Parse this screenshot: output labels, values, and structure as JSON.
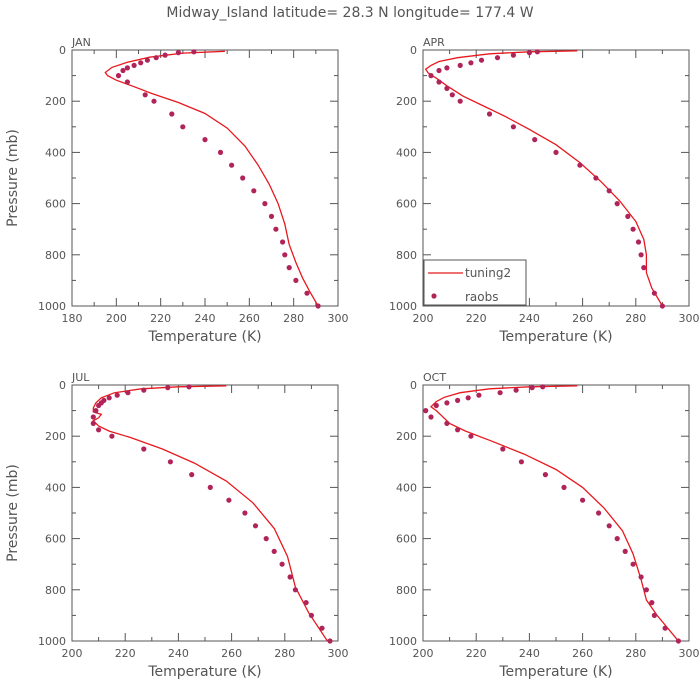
{
  "title": "Midway_Island  latitude= 28.3 N longitude= 177.4 W",
  "colors": {
    "line": "#e8191e",
    "marker": "#b0245a",
    "axis": "#555555"
  },
  "legend": {
    "placement": "inside-lower-left of APR panel",
    "line_label": "tuning2",
    "marker_label": "raobs"
  },
  "chart_data": [
    {
      "type": "line+scatter",
      "panel": "JAN",
      "xlabel": "Temperature (K)",
      "ylabel": "Pressure (mb)",
      "xlim": [
        180,
        300
      ],
      "ylim": [
        1000,
        0
      ],
      "xticks": [
        180,
        200,
        220,
        240,
        260,
        280,
        300
      ],
      "yticks": [
        0,
        200,
        400,
        600,
        800,
        1000
      ],
      "series": [
        {
          "name": "tuning2",
          "kind": "line",
          "points": [
            [
              249,
              5
            ],
            [
              230,
              12
            ],
            [
              215,
              28
            ],
            [
              205,
              48
            ],
            [
              198,
              68
            ],
            [
              195,
              88
            ],
            [
              196,
              100
            ],
            [
              200,
              118
            ],
            [
              207,
              140
            ],
            [
              216,
              170
            ],
            [
              228,
              205
            ],
            [
              240,
              248
            ],
            [
              250,
              305
            ],
            [
              258,
              375
            ],
            [
              264,
              450
            ],
            [
              269,
              525
            ],
            [
              273,
              600
            ],
            [
              276,
              680
            ],
            [
              278,
              760
            ],
            [
              281,
              830
            ],
            [
              284,
              890
            ],
            [
              287,
              940
            ],
            [
              291,
              1000
            ]
          ]
        },
        {
          "name": "raobs",
          "kind": "scatter",
          "points": [
            [
              235,
              7
            ],
            [
              228,
              10
            ],
            [
              222,
              20
            ],
            [
              218,
              30
            ],
            [
              214,
              40
            ],
            [
              211,
              50
            ],
            [
              208,
              60
            ],
            [
              205,
              70
            ],
            [
              203,
              80
            ],
            [
              201,
              100
            ],
            [
              205,
              125
            ],
            [
              213,
              175
            ],
            [
              217,
              200
            ],
            [
              225,
              250
            ],
            [
              230,
              300
            ],
            [
              240,
              350
            ],
            [
              247,
              400
            ],
            [
              252,
              450
            ],
            [
              257,
              500
            ],
            [
              262,
              550
            ],
            [
              267,
              600
            ],
            [
              270,
              650
            ],
            [
              272,
              700
            ],
            [
              275,
              750
            ],
            [
              276,
              800
            ],
            [
              278,
              850
            ],
            [
              281,
              900
            ],
            [
              286,
              950
            ],
            [
              291,
              1000
            ]
          ]
        }
      ]
    },
    {
      "type": "line+scatter",
      "panel": "APR",
      "xlabel": "Temperature (K)",
      "ylabel": "",
      "xlim": [
        200,
        300
      ],
      "ylim": [
        1000,
        0
      ],
      "xticks": [
        200,
        220,
        240,
        260,
        280,
        300
      ],
      "yticks": [
        0,
        200,
        400,
        600,
        800,
        1000
      ],
      "series": [
        {
          "name": "tuning2",
          "kind": "line",
          "points": [
            [
              258,
              3
            ],
            [
              240,
              7
            ],
            [
              225,
              15
            ],
            [
              213,
              30
            ],
            [
              206,
              45
            ],
            [
              203,
              60
            ],
            [
              201,
              75
            ],
            [
              202,
              90
            ],
            [
              205,
              110
            ],
            [
              209,
              140
            ],
            [
              215,
              180
            ],
            [
              222,
              215
            ],
            [
              231,
              260
            ],
            [
              240,
              310
            ],
            [
              250,
              370
            ],
            [
              259,
              440
            ],
            [
              267,
              515
            ],
            [
              274,
              590
            ],
            [
              280,
              670
            ],
            [
              283,
              740
            ],
            [
              284,
              800
            ],
            [
              284,
              870
            ],
            [
              286,
              930
            ],
            [
              290,
              1000
            ]
          ]
        },
        {
          "name": "raobs",
          "kind": "scatter",
          "points": [
            [
              243,
              7
            ],
            [
              240,
              10
            ],
            [
              234,
              20
            ],
            [
              228,
              30
            ],
            [
              222,
              40
            ],
            [
              218,
              50
            ],
            [
              214,
              60
            ],
            [
              209,
              70
            ],
            [
              206,
              80
            ],
            [
              203,
              100
            ],
            [
              206,
              125
            ],
            [
              209,
              150
            ],
            [
              211,
              175
            ],
            [
              214,
              200
            ],
            [
              225,
              250
            ],
            [
              234,
              300
            ],
            [
              242,
              350
            ],
            [
              250,
              400
            ],
            [
              259,
              450
            ],
            [
              265,
              500
            ],
            [
              270,
              550
            ],
            [
              273,
              600
            ],
            [
              277,
              650
            ],
            [
              279,
              700
            ],
            [
              281,
              750
            ],
            [
              282,
              800
            ],
            [
              283,
              850
            ],
            [
              287,
              950
            ],
            [
              290,
              1000
            ]
          ]
        }
      ]
    },
    {
      "type": "line+scatter",
      "panel": "JUL",
      "xlabel": "Temperature (K)",
      "ylabel": "Pressure (mb)",
      "xlim": [
        200,
        300
      ],
      "ylim": [
        1000,
        0
      ],
      "xticks": [
        200,
        220,
        240,
        260,
        280,
        300
      ],
      "yticks": [
        0,
        200,
        400,
        600,
        800,
        1000
      ],
      "series": [
        {
          "name": "tuning2",
          "kind": "line",
          "points": [
            [
              258,
              3
            ],
            [
              240,
              7
            ],
            [
              226,
              15
            ],
            [
              216,
              30
            ],
            [
              211,
              50
            ],
            [
              209,
              70
            ],
            [
              208,
              90
            ],
            [
              208,
              105
            ],
            [
              211,
              115
            ],
            [
              210,
              128
            ],
            [
              208,
              140
            ],
            [
              210,
              160
            ],
            [
              214,
              180
            ],
            [
              222,
              205
            ],
            [
              234,
              250
            ],
            [
              246,
              305
            ],
            [
              258,
              375
            ],
            [
              268,
              460
            ],
            [
              276,
              560
            ],
            [
              281,
              670
            ],
            [
              284,
              790
            ],
            [
              289,
              890
            ],
            [
              296,
              1000
            ]
          ]
        },
        {
          "name": "raobs",
          "kind": "scatter",
          "points": [
            [
              244,
              7
            ],
            [
              236,
              10
            ],
            [
              227,
              20
            ],
            [
              221,
              30
            ],
            [
              217,
              40
            ],
            [
              214,
              50
            ],
            [
              212,
              60
            ],
            [
              211,
              70
            ],
            [
              210,
              80
            ],
            [
              209,
              100
            ],
            [
              208,
              125
            ],
            [
              208,
              150
            ],
            [
              210,
              175
            ],
            [
              215,
              200
            ],
            [
              227,
              250
            ],
            [
              237,
              300
            ],
            [
              245,
              350
            ],
            [
              252,
              400
            ],
            [
              259,
              450
            ],
            [
              265,
              500
            ],
            [
              269,
              550
            ],
            [
              273,
              600
            ],
            [
              276,
              650
            ],
            [
              279,
              700
            ],
            [
              282,
              750
            ],
            [
              284,
              800
            ],
            [
              288,
              850
            ],
            [
              290,
              900
            ],
            [
              294,
              950
            ],
            [
              297,
              1000
            ]
          ]
        }
      ]
    },
    {
      "type": "line+scatter",
      "panel": "OCT",
      "xlabel": "Temperature (K)",
      "ylabel": "",
      "xlim": [
        200,
        300
      ],
      "ylim": [
        1000,
        0
      ],
      "xticks": [
        200,
        220,
        240,
        260,
        280,
        300
      ],
      "yticks": [
        0,
        200,
        400,
        600,
        800,
        1000
      ],
      "series": [
        {
          "name": "tuning2",
          "kind": "line",
          "points": [
            [
              258,
              3
            ],
            [
              240,
              7
            ],
            [
              225,
              15
            ],
            [
              214,
              30
            ],
            [
              208,
              48
            ],
            [
              205,
              65
            ],
            [
              203,
              85
            ],
            [
              205,
              100
            ],
            [
              207,
              120
            ],
            [
              210,
              150
            ],
            [
              216,
              180
            ],
            [
              226,
              220
            ],
            [
              238,
              270
            ],
            [
              250,
              330
            ],
            [
              260,
              400
            ],
            [
              268,
              480
            ],
            [
              275,
              570
            ],
            [
              279,
              660
            ],
            [
              282,
              760
            ],
            [
              284,
              840
            ],
            [
              288,
              900
            ],
            [
              296,
              1000
            ]
          ]
        },
        {
          "name": "raobs",
          "kind": "scatter",
          "points": [
            [
              245,
              7
            ],
            [
              241,
              10
            ],
            [
              235,
              20
            ],
            [
              229,
              30
            ],
            [
              221,
              40
            ],
            [
              217,
              50
            ],
            [
              213,
              60
            ],
            [
              209,
              70
            ],
            [
              205,
              80
            ],
            [
              201,
              100
            ],
            [
              203,
              125
            ],
            [
              209,
              150
            ],
            [
              213,
              175
            ],
            [
              218,
              200
            ],
            [
              230,
              250
            ],
            [
              237,
              300
            ],
            [
              246,
              350
            ],
            [
              253,
              400
            ],
            [
              260,
              450
            ],
            [
              266,
              500
            ],
            [
              270,
              550
            ],
            [
              273,
              600
            ],
            [
              276,
              650
            ],
            [
              279,
              700
            ],
            [
              282,
              750
            ],
            [
              284,
              800
            ],
            [
              286,
              850
            ],
            [
              287,
              900
            ],
            [
              291,
              950
            ],
            [
              296,
              1000
            ]
          ]
        }
      ]
    }
  ]
}
